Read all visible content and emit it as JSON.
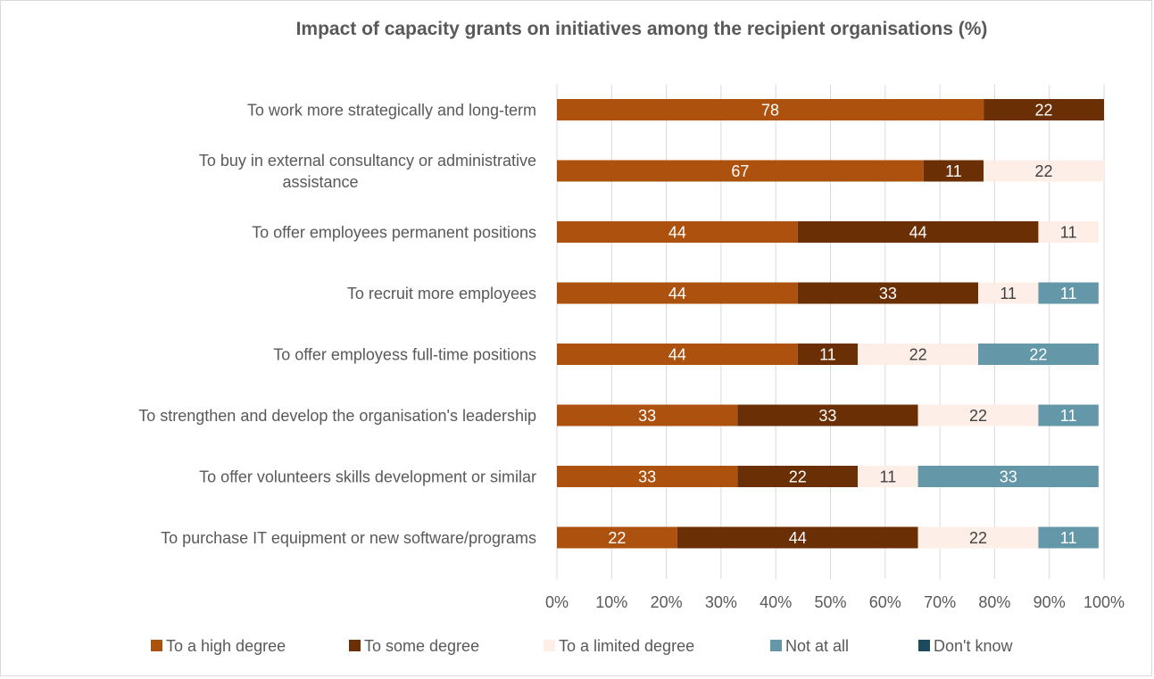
{
  "chart_data": {
    "type": "bar",
    "orientation": "horizontal",
    "stacked": true,
    "title": "Impact of capacity grants on initiatives among the recipient organisations (%)",
    "xlabel": "",
    "ylabel": "",
    "xlim": [
      0,
      100
    ],
    "x_ticks": [
      "0%",
      "10%",
      "20%",
      "30%",
      "40%",
      "50%",
      "60%",
      "70%",
      "80%",
      "90%",
      "100%"
    ],
    "grid": true,
    "legend_position": "bottom",
    "categories": [
      {
        "lines": [
          "To work more strategically and long-term"
        ]
      },
      {
        "lines": [
          "To buy in external consultancy or administrative",
          "assistance"
        ]
      },
      {
        "lines": [
          "To offer employees permanent positions"
        ]
      },
      {
        "lines": [
          "To recruit more employees"
        ]
      },
      {
        "lines": [
          "To offer employess full-time positions"
        ]
      },
      {
        "lines": [
          "To strengthen and develop the organisation's leadership"
        ]
      },
      {
        "lines": [
          "To offer volunteers skills development or similar"
        ]
      },
      {
        "lines": [
          "To purchase IT equipment or new software/programs"
        ]
      }
    ],
    "series": [
      {
        "name": "To a high degree",
        "color": "#ad510e",
        "label_color": "#ffffff",
        "values": [
          78,
          67,
          44,
          44,
          44,
          33,
          33,
          22
        ],
        "labels": [
          "78",
          "67",
          "44",
          "44",
          "44",
          "33",
          "33",
          "22"
        ]
      },
      {
        "name": "To some degree",
        "color": "#6b2f05",
        "label_color": "#ffffff",
        "values": [
          22,
          11,
          44,
          33,
          11,
          33,
          22,
          44
        ],
        "labels": [
          "22",
          "11",
          "44",
          "33",
          "11",
          "33",
          "22",
          "44"
        ]
      },
      {
        "name": "To a limited degree",
        "color": "#fdefe7",
        "label_color": "#404040",
        "values": [
          0,
          22,
          11,
          11,
          22,
          22,
          11,
          22
        ],
        "labels": [
          "",
          "22",
          "11",
          "11",
          "22",
          "22",
          "11",
          "22"
        ]
      },
      {
        "name": "Not at all",
        "color": "#6497a8",
        "label_color": "#ffffff",
        "values": [
          0,
          0,
          0,
          11,
          22,
          11,
          33,
          11
        ],
        "labels": [
          "",
          "",
          "",
          "11",
          "22",
          "11",
          "33",
          "11"
        ]
      },
      {
        "name": "Don't know",
        "color": "#1d4a5c",
        "label_color": "#ffffff",
        "values": [
          0,
          0,
          0,
          0,
          0,
          0,
          0,
          0
        ],
        "labels": [
          "",
          "",
          "",
          "",
          "",
          "",
          "",
          ""
        ]
      }
    ]
  }
}
